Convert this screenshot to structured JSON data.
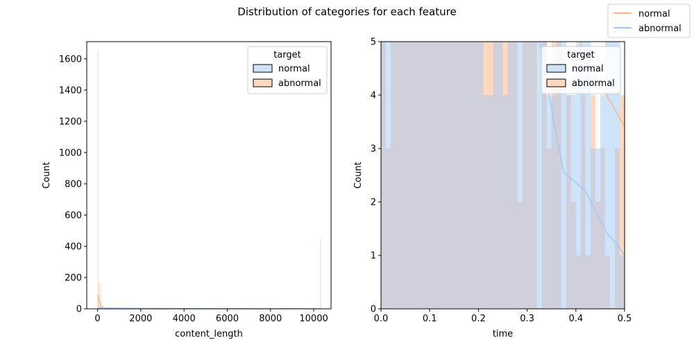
{
  "suptitle": "Distribution of categories for each feature",
  "figure_legend": {
    "placement": "top-right",
    "entries": [
      {
        "label": "normal",
        "color": "#ffb482"
      },
      {
        "label": "abnormal",
        "color": "#a1c9f4"
      }
    ]
  },
  "colors": {
    "normal_fill": "#a1c9f4",
    "abnormal_fill": "#ffb482",
    "overlap_fill": "#d0d0dc"
  },
  "chart_data": [
    {
      "type": "histogram",
      "xlabel": "content_length",
      "ylabel": "Count",
      "xlim": [
        -500,
        10800
      ],
      "ylim": [
        0,
        1710
      ],
      "xticks": [
        0,
        2000,
        4000,
        6000,
        8000,
        10000
      ],
      "yticks": [
        0,
        200,
        400,
        600,
        800,
        1000,
        1200,
        1400,
        1600
      ],
      "legend": {
        "title": "target",
        "placement": "top-right",
        "entries": [
          "normal",
          "abnormal"
        ]
      },
      "series": [
        {
          "name": "abnormal",
          "color": "#ffb482",
          "bins": [
            [
              0,
              40,
              95
            ],
            [
              40,
              80,
              170
            ],
            [
              80,
              120,
              20
            ],
            [
              120,
              160,
              165
            ],
            [
              160,
              200,
              10
            ],
            [
              200,
              600,
              8
            ]
          ],
          "kde": [
            [
              0,
              90
            ],
            [
              60,
              60
            ],
            [
              150,
              20
            ],
            [
              300,
              5
            ],
            [
              1000,
              2
            ],
            [
              10300,
              0
            ]
          ]
        },
        {
          "name": "normal",
          "color": "#a1c9f4",
          "bins": [
            [
              0,
              40,
              1650
            ],
            [
              40,
              300,
              12
            ],
            [
              300,
              10300,
              2
            ],
            [
              10300,
              10340,
              450
            ]
          ],
          "kde": [
            [
              0,
              6
            ],
            [
              200,
              5
            ],
            [
              1000,
              4
            ],
            [
              3000,
              2
            ],
            [
              6000,
              1
            ],
            [
              10300,
              0
            ]
          ]
        }
      ]
    },
    {
      "type": "histogram",
      "xlabel": "time",
      "ylabel": "Count",
      "xlim": [
        0.0,
        0.5
      ],
      "ylim": [
        0,
        5
      ],
      "xticks": [
        0.0,
        0.1,
        0.2,
        0.3,
        0.4,
        0.5
      ],
      "yticks": [
        0,
        1,
        2,
        3,
        4,
        5
      ],
      "legend": {
        "title": "target",
        "placement": "top-right",
        "entries": [
          "normal",
          "abnormal"
        ]
      },
      "bin_width": 0.01,
      "series": [
        {
          "name": "normal",
          "color": "#a1c9f4",
          "counts": [
            5,
            5,
            5,
            5,
            5,
            5,
            5,
            5,
            5,
            5,
            5,
            5,
            5,
            5,
            5,
            5,
            5,
            5,
            5,
            5,
            5,
            4,
            4,
            5,
            5,
            4,
            5,
            5,
            5,
            5,
            5,
            5,
            5,
            5,
            4,
            4,
            5,
            5,
            4,
            4,
            5,
            5,
            5,
            3,
            3,
            4,
            5,
            5,
            5,
            1
          ],
          "kde": [
            [
              0.32,
              5.3
            ],
            [
              0.335,
              4.5
            ],
            [
              0.355,
              3.5
            ],
            [
              0.375,
              2.55
            ],
            [
              0.395,
              2.4
            ],
            [
              0.42,
              2.2
            ],
            [
              0.445,
              1.75
            ],
            [
              0.465,
              1.4
            ],
            [
              0.485,
              1.2
            ],
            [
              0.5,
              1.0
            ]
          ]
        },
        {
          "name": "abnormal",
          "color": "#ffb482",
          "counts": [
            5,
            3,
            5,
            5,
            5,
            5,
            5,
            5,
            5,
            5,
            5,
            5,
            5,
            5,
            5,
            5,
            5,
            5,
            5,
            5,
            5,
            5,
            5,
            5,
            5,
            5,
            5,
            5,
            2,
            5,
            5,
            5,
            0,
            5,
            3,
            5,
            5,
            0,
            4,
            2,
            1,
            4,
            1,
            4,
            2,
            3,
            1,
            0,
            3,
            4
          ],
          "kde": [
            [
              0.4,
              5.2
            ],
            [
              0.41,
              4.95
            ],
            [
              0.425,
              4.55
            ],
            [
              0.44,
              4.35
            ],
            [
              0.455,
              4.1
            ],
            [
              0.47,
              3.9
            ],
            [
              0.485,
              3.65
            ],
            [
              0.5,
              3.4
            ]
          ]
        }
      ]
    }
  ]
}
